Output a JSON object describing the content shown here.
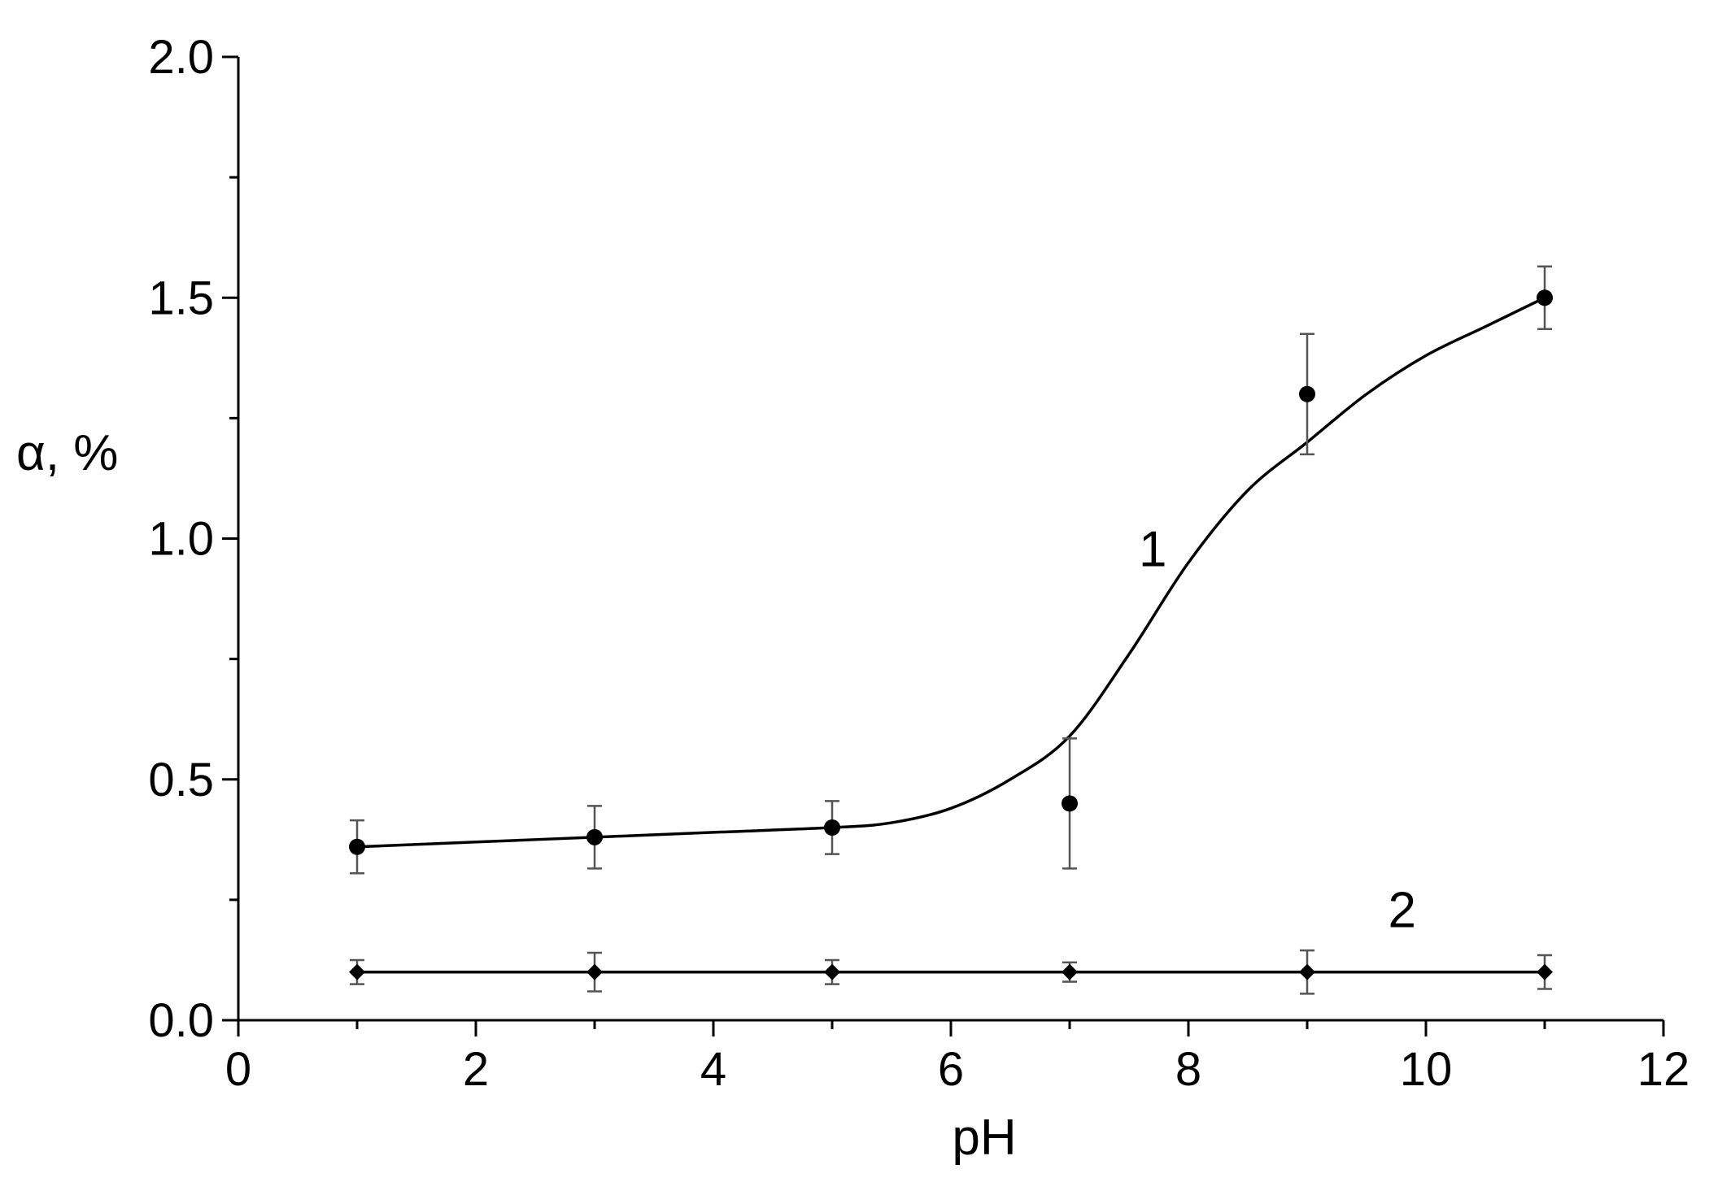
{
  "chart_data": {
    "type": "scatter",
    "xlabel": "pH",
    "ylabel": "α, %",
    "xlim": [
      0,
      12
    ],
    "ylim": [
      0,
      2.0
    ],
    "xticks": [
      0,
      2,
      4,
      6,
      8,
      10,
      12
    ],
    "yticks": [
      0.0,
      0.5,
      1.0,
      1.5,
      2.0
    ],
    "xtick_labels": [
      "0",
      "2",
      "4",
      "6",
      "8",
      "10",
      "12"
    ],
    "ytick_labels": [
      "0.0",
      "0.5",
      "1.0",
      "1.5",
      "2.0"
    ],
    "grid": false,
    "series": [
      {
        "name": "1",
        "marker": "circle",
        "x": [
          1,
          3,
          5,
          7,
          9,
          11
        ],
        "y": [
          0.36,
          0.38,
          0.4,
          0.45,
          1.3,
          1.5
        ],
        "err_low": [
          0.305,
          0.315,
          0.345,
          0.315,
          1.175,
          1.435
        ],
        "err_high": [
          0.415,
          0.445,
          0.455,
          0.585,
          1.425,
          1.565
        ],
        "fit": {
          "x": [
            1,
            2,
            3,
            4,
            5,
            5.5,
            6,
            6.5,
            7,
            7.5,
            8,
            8.5,
            9,
            9.5,
            10,
            10.5,
            11
          ],
          "y": [
            0.36,
            0.37,
            0.38,
            0.39,
            0.4,
            0.41,
            0.44,
            0.5,
            0.59,
            0.76,
            0.95,
            1.1,
            1.2,
            1.3,
            1.38,
            1.44,
            1.5
          ]
        }
      },
      {
        "name": "2",
        "marker": "diamond",
        "x": [
          1,
          3,
          5,
          7,
          9,
          11
        ],
        "y": [
          0.1,
          0.1,
          0.1,
          0.1,
          0.1,
          0.1
        ],
        "err_low": [
          0.075,
          0.06,
          0.075,
          0.08,
          0.055,
          0.065
        ],
        "err_high": [
          0.125,
          0.14,
          0.125,
          0.12,
          0.145,
          0.135
        ]
      }
    ],
    "annotations": [
      {
        "text": "1",
        "x": 7.7,
        "y": 0.98
      },
      {
        "text": "2",
        "x": 9.8,
        "y": 0.23
      }
    ]
  }
}
